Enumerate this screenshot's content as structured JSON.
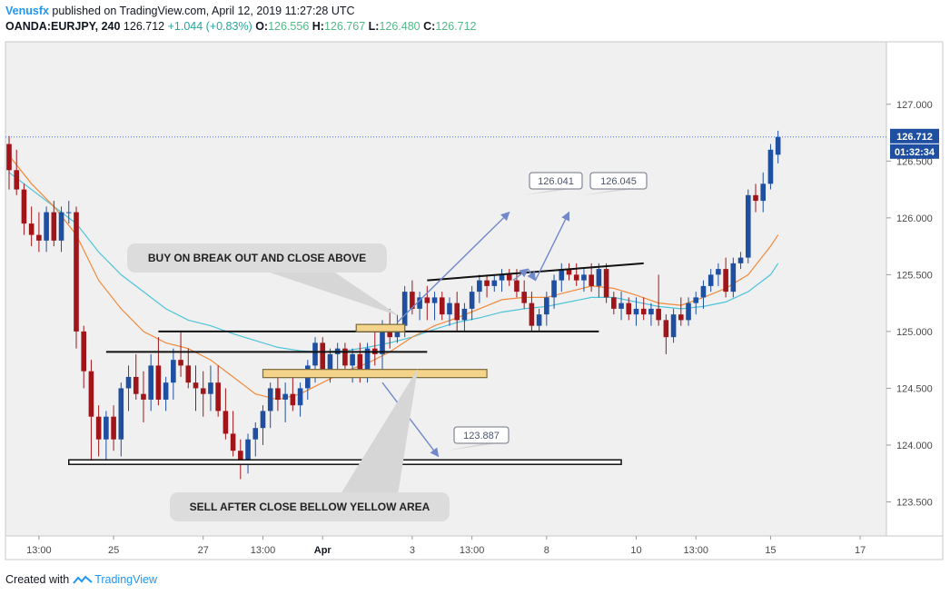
{
  "header": {
    "author": "Venusfx",
    "published_text": "published on TradingView.com, April 12, 2019 11:27:28 UTC",
    "symbol": "OANDA:EURJPY, 240",
    "last": "126.712",
    "change": "+1.044 (+0.83%)",
    "o_label": "O:",
    "o_value": "126.556",
    "h_label": "H:",
    "h_value": "126.767",
    "l_label": "L:",
    "l_value": "126.480",
    "c_label": "C:",
    "c_value": "126.712"
  },
  "footer": {
    "created_with": "Created with",
    "brand": "TradingView"
  },
  "colors": {
    "bull": "#1e4fa0",
    "bear": "#a0151a",
    "ema_fast": "#f08a3c",
    "ema_slow": "#4fc3d9",
    "zone_fill": "#f4d48a",
    "zone_stroke": "#7a6a3a",
    "arrow": "#7189c9",
    "price_line": "#2962ff"
  },
  "chart_data": {
    "type": "candlestick",
    "symbol": "OANDA:EURJPY",
    "timeframe": "240",
    "y_ticks": [
      "127.000",
      "126.500",
      "126.000",
      "125.500",
      "125.000",
      "124.500",
      "124.000",
      "123.500"
    ],
    "y_tick_values": [
      127.0,
      126.5,
      126.0,
      125.5,
      125.0,
      124.5,
      124.0,
      123.5
    ],
    "ylim": [
      123.2,
      127.55
    ],
    "x_ticks": [
      {
        "label": "13:00",
        "bar": 4
      },
      {
        "label": "25",
        "bar": 14
      },
      {
        "label": "27",
        "bar": 26
      },
      {
        "label": "13:00",
        "bar": 34
      },
      {
        "label": "Apr",
        "bar": 42
      },
      {
        "label": "3",
        "bar": 54
      },
      {
        "label": "13:00",
        "bar": 62
      },
      {
        "label": "8",
        "bar": 72
      },
      {
        "label": "10",
        "bar": 84
      },
      {
        "label": "13:00",
        "bar": 92
      },
      {
        "label": "15",
        "bar": 102
      },
      {
        "label": "17",
        "bar": 114
      }
    ],
    "bars_total": 115,
    "last_price_label": "126.712",
    "countdown_label": "01:32:34",
    "candles": [
      [
        126.65,
        126.72,
        126.25,
        126.42
      ],
      [
        126.42,
        126.6,
        126.2,
        126.25
      ],
      [
        126.25,
        126.3,
        125.85,
        125.95
      ],
      [
        125.95,
        126.1,
        125.75,
        125.85
      ],
      [
        125.85,
        126.05,
        125.7,
        125.8
      ],
      [
        125.8,
        126.1,
        125.7,
        126.05
      ],
      [
        126.05,
        126.15,
        125.75,
        125.8
      ],
      [
        125.8,
        126.1,
        125.7,
        126.05
      ],
      [
        126.05,
        126.15,
        125.95,
        126.05
      ],
      [
        126.05,
        126.1,
        124.85,
        125.0
      ],
      [
        125.0,
        125.05,
        124.5,
        124.65
      ],
      [
        124.65,
        124.75,
        123.85,
        124.25
      ],
      [
        124.25,
        124.35,
        123.9,
        124.05
      ],
      [
        124.05,
        124.3,
        123.85,
        124.25
      ],
      [
        124.25,
        124.35,
        123.95,
        124.05
      ],
      [
        124.05,
        124.55,
        123.9,
        124.5
      ],
      [
        124.5,
        124.7,
        124.3,
        124.6
      ],
      [
        124.6,
        124.8,
        124.4,
        124.45
      ],
      [
        124.45,
        124.65,
        124.2,
        124.4
      ],
      [
        124.4,
        124.8,
        124.3,
        124.7
      ],
      [
        124.7,
        124.95,
        124.35,
        124.4
      ],
      [
        124.4,
        124.6,
        124.3,
        124.55
      ],
      [
        124.55,
        124.85,
        124.4,
        124.75
      ],
      [
        124.75,
        125.0,
        124.6,
        124.7
      ],
      [
        124.7,
        124.85,
        124.5,
        124.55
      ],
      [
        124.55,
        124.7,
        124.3,
        124.5
      ],
      [
        124.5,
        124.65,
        124.25,
        124.45
      ],
      [
        124.45,
        124.7,
        124.3,
        124.55
      ],
      [
        124.55,
        124.7,
        124.25,
        124.3
      ],
      [
        124.3,
        124.5,
        124.05,
        124.1
      ],
      [
        124.1,
        124.3,
        123.9,
        123.95
      ],
      [
        123.95,
        124.05,
        123.7,
        123.85
      ],
      [
        123.85,
        124.1,
        123.75,
        124.05
      ],
      [
        124.05,
        124.2,
        123.9,
        124.15
      ],
      [
        124.15,
        124.35,
        124.0,
        124.3
      ],
      [
        124.3,
        124.55,
        124.15,
        124.5
      ],
      [
        124.5,
        124.6,
        124.3,
        124.4
      ],
      [
        124.4,
        124.55,
        124.2,
        124.45
      ],
      [
        124.45,
        124.6,
        124.3,
        124.35
      ],
      [
        124.35,
        124.55,
        124.25,
        124.5
      ],
      [
        124.5,
        124.75,
        124.4,
        124.7
      ],
      [
        124.7,
        124.95,
        124.55,
        124.9
      ],
      [
        124.9,
        124.95,
        124.6,
        124.65
      ],
      [
        124.65,
        124.85,
        124.55,
        124.8
      ],
      [
        124.8,
        124.9,
        124.65,
        124.85
      ],
      [
        124.85,
        124.9,
        124.65,
        124.7
      ],
      [
        124.7,
        124.85,
        124.55,
        124.8
      ],
      [
        124.8,
        124.9,
        124.55,
        124.65
      ],
      [
        124.65,
        124.9,
        124.55,
        124.85
      ],
      [
        124.85,
        125.05,
        124.7,
        124.8
      ],
      [
        124.8,
        125.1,
        124.6,
        125.05
      ],
      [
        125.05,
        125.2,
        124.85,
        124.95
      ],
      [
        124.95,
        125.15,
        124.9,
        125.05
      ],
      [
        125.05,
        125.4,
        124.95,
        125.35
      ],
      [
        125.35,
        125.45,
        125.15,
        125.2
      ],
      [
        125.2,
        125.35,
        125.1,
        125.3
      ],
      [
        125.3,
        125.4,
        125.1,
        125.25
      ],
      [
        125.25,
        125.35,
        125.1,
        125.3
      ],
      [
        125.3,
        125.35,
        125.1,
        125.15
      ],
      [
        125.15,
        125.3,
        125.05,
        125.25
      ],
      [
        125.25,
        125.35,
        125.0,
        125.1
      ],
      [
        125.1,
        125.25,
        125.0,
        125.2
      ],
      [
        125.2,
        125.4,
        125.1,
        125.35
      ],
      [
        125.35,
        125.5,
        125.25,
        125.45
      ],
      [
        125.45,
        125.5,
        125.3,
        125.4
      ],
      [
        125.4,
        125.5,
        125.35,
        125.45
      ],
      [
        125.45,
        125.55,
        125.35,
        125.5
      ],
      [
        125.5,
        125.55,
        125.4,
        125.45
      ],
      [
        125.45,
        125.55,
        125.3,
        125.35
      ],
      [
        125.35,
        125.45,
        125.2,
        125.25
      ],
      [
        125.25,
        125.35,
        125.0,
        125.05
      ],
      [
        125.05,
        125.2,
        125.0,
        125.15
      ],
      [
        125.15,
        125.35,
        125.05,
        125.3
      ],
      [
        125.3,
        125.5,
        125.2,
        125.45
      ],
      [
        125.45,
        125.6,
        125.35,
        125.55
      ],
      [
        125.55,
        125.6,
        125.45,
        125.5
      ],
      [
        125.5,
        125.6,
        125.4,
        125.45
      ],
      [
        125.45,
        125.55,
        125.35,
        125.5
      ],
      [
        125.5,
        125.6,
        125.35,
        125.4
      ],
      [
        125.4,
        125.6,
        125.3,
        125.55
      ],
      [
        125.55,
        125.6,
        125.25,
        125.3
      ],
      [
        125.3,
        125.35,
        125.15,
        125.2
      ],
      [
        125.2,
        125.35,
        125.1,
        125.25
      ],
      [
        125.25,
        125.3,
        125.1,
        125.15
      ],
      [
        125.15,
        125.3,
        125.05,
        125.2
      ],
      [
        125.2,
        125.3,
        125.1,
        125.15
      ],
      [
        125.15,
        125.25,
        125.05,
        125.2
      ],
      [
        125.2,
        125.5,
        125.05,
        125.1
      ],
      [
        125.1,
        125.15,
        124.8,
        124.95
      ],
      [
        124.95,
        125.2,
        124.9,
        125.15
      ],
      [
        125.15,
        125.3,
        125.05,
        125.1
      ],
      [
        125.1,
        125.3,
        125.05,
        125.25
      ],
      [
        125.25,
        125.35,
        125.15,
        125.3
      ],
      [
        125.3,
        125.45,
        125.2,
        125.4
      ],
      [
        125.4,
        125.55,
        125.35,
        125.5
      ],
      [
        125.5,
        125.6,
        125.4,
        125.55
      ],
      [
        125.55,
        125.65,
        125.3,
        125.35
      ],
      [
        125.35,
        125.65,
        125.3,
        125.6
      ],
      [
        125.6,
        125.7,
        125.55,
        125.65
      ],
      [
        125.65,
        126.25,
        125.6,
        126.2
      ],
      [
        126.2,
        126.3,
        126.05,
        126.15
      ],
      [
        126.15,
        126.4,
        126.05,
        126.3
      ],
      [
        126.3,
        126.65,
        126.25,
        126.6
      ],
      [
        126.556,
        126.767,
        126.48,
        126.712
      ]
    ],
    "ema_fast": [
      [
        0,
        126.55
      ],
      [
        3,
        126.3
      ],
      [
        6,
        126.1
      ],
      [
        9,
        125.85
      ],
      [
        12,
        125.45
      ],
      [
        15,
        125.2
      ],
      [
        18,
        125.0
      ],
      [
        21,
        124.9
      ],
      [
        24,
        124.85
      ],
      [
        27,
        124.75
      ],
      [
        30,
        124.6
      ],
      [
        33,
        124.45
      ],
      [
        36,
        124.4
      ],
      [
        39,
        124.45
      ],
      [
        42,
        124.55
      ],
      [
        45,
        124.65
      ],
      [
        48,
        124.72
      ],
      [
        51,
        124.82
      ],
      [
        54,
        124.95
      ],
      [
        57,
        125.05
      ],
      [
        60,
        125.12
      ],
      [
        63,
        125.2
      ],
      [
        66,
        125.28
      ],
      [
        69,
        125.3
      ],
      [
        72,
        125.3
      ],
      [
        75,
        125.35
      ],
      [
        78,
        125.4
      ],
      [
        81,
        125.38
      ],
      [
        84,
        125.32
      ],
      [
        87,
        125.25
      ],
      [
        90,
        125.23
      ],
      [
        93,
        125.3
      ],
      [
        96,
        125.38
      ],
      [
        99,
        125.5
      ],
      [
        102,
        125.75
      ],
      [
        103,
        125.85
      ]
    ],
    "ema_slow": [
      [
        0,
        126.4
      ],
      [
        3,
        126.25
      ],
      [
        6,
        126.1
      ],
      [
        9,
        125.95
      ],
      [
        12,
        125.7
      ],
      [
        15,
        125.5
      ],
      [
        18,
        125.35
      ],
      [
        21,
        125.2
      ],
      [
        24,
        125.1
      ],
      [
        27,
        125.05
      ],
      [
        30,
        124.98
      ],
      [
        33,
        124.92
      ],
      [
        36,
        124.86
      ],
      [
        39,
        124.83
      ],
      [
        42,
        124.82
      ],
      [
        45,
        124.83
      ],
      [
        48,
        124.86
      ],
      [
        51,
        124.9
      ],
      [
        54,
        124.95
      ],
      [
        57,
        125.02
      ],
      [
        60,
        125.08
      ],
      [
        63,
        125.12
      ],
      [
        66,
        125.17
      ],
      [
        69,
        125.2
      ],
      [
        72,
        125.22
      ],
      [
        75,
        125.26
      ],
      [
        78,
        125.3
      ],
      [
        81,
        125.3
      ],
      [
        84,
        125.26
      ],
      [
        87,
        125.22
      ],
      [
        90,
        125.2
      ],
      [
        93,
        125.22
      ],
      [
        96,
        125.26
      ],
      [
        99,
        125.35
      ],
      [
        102,
        125.5
      ],
      [
        103,
        125.6
      ]
    ],
    "annotations": {
      "buy_text": "BUY ON BREAK OUT AND CLOSE ABOVE",
      "sell_text": "SELL AFTER CLOSE BELLOW YELLOW AREA",
      "target1": "126.041",
      "target2": "126.045",
      "target3": "123.887"
    }
  }
}
